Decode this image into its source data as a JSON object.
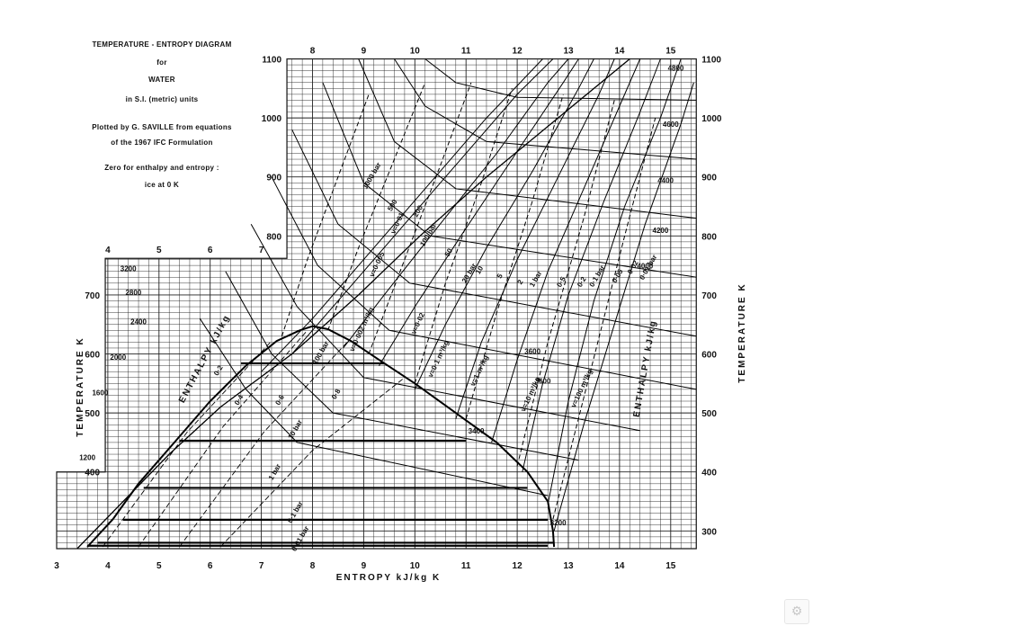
{
  "title_block": {
    "lines": [
      "TEMPERATURE - ENTROPY  DIAGRAM",
      "for",
      "WATER",
      "in S.I. (metric) units",
      "Plotted by G. SAVILLE  from equations",
      "of the 1967 IFC Formulation",
      "Zero for enthalpy and entropy :",
      "ice at 0 K"
    ]
  },
  "axes": {
    "x_label": "ENTROPY     kJ/kg K",
    "y_label_left": "TEMPERATURE   K",
    "y_label_right": "TEMPERATURE   K",
    "entropy_range": [
      3,
      15
    ],
    "temperature_range": [
      270,
      1100
    ],
    "bottom_ticks": [
      "3",
      "4",
      "5",
      "6",
      "7",
      "8",
      "9",
      "10",
      "11",
      "12",
      "13",
      "14",
      "15"
    ],
    "top_ticks": [
      "8",
      "9",
      "10",
      "11",
      "12",
      "13",
      "14",
      "15"
    ],
    "inset_top_ticks": [
      "4",
      "5",
      "6",
      "7"
    ],
    "left_ticks_upper": [
      "1100",
      "1000",
      "900",
      "800"
    ],
    "left_ticks_lower": [
      "700",
      "600",
      "500",
      "400"
    ],
    "right_ticks": [
      "1100",
      "1000",
      "900",
      "800",
      "700",
      "600",
      "500",
      "400",
      "300"
    ]
  },
  "enthalpy_labels": [
    "4800",
    "4600",
    "4400",
    "4200",
    "4000",
    "3600",
    "3600",
    "3400",
    "3200",
    "3200",
    "2800",
    "2400",
    "2000",
    "1600",
    "1200"
  ],
  "enthalpy_word_left": "ENTHALPY   kJ/kg",
  "enthalpy_word_right": "ENTHALPY   kJ/kg",
  "pressure_labels": [
    "1000 bar",
    "500",
    "200",
    "100 bar",
    "50",
    "20 bar",
    "10",
    "5",
    "2",
    "1 bar",
    "0·5",
    "0·2",
    "0·1 bar",
    "0·05",
    "0·02",
    "0·01 bar",
    "100 bar",
    "10 bar",
    "1 bar",
    "0·1 bar",
    "0·01 bar"
  ],
  "quality_labels": [
    "0·2",
    "0·4",
    "0·6",
    "0·8"
  ],
  "volume_labels": [
    "v=0·002 m³/kg",
    "v=0·005",
    "v=0·01",
    "v=0·02",
    "v=0·1 m³/kg",
    "v=1 m³/kg",
    "v=10 m³/kg",
    "v=100 m³/kg"
  ]
}
